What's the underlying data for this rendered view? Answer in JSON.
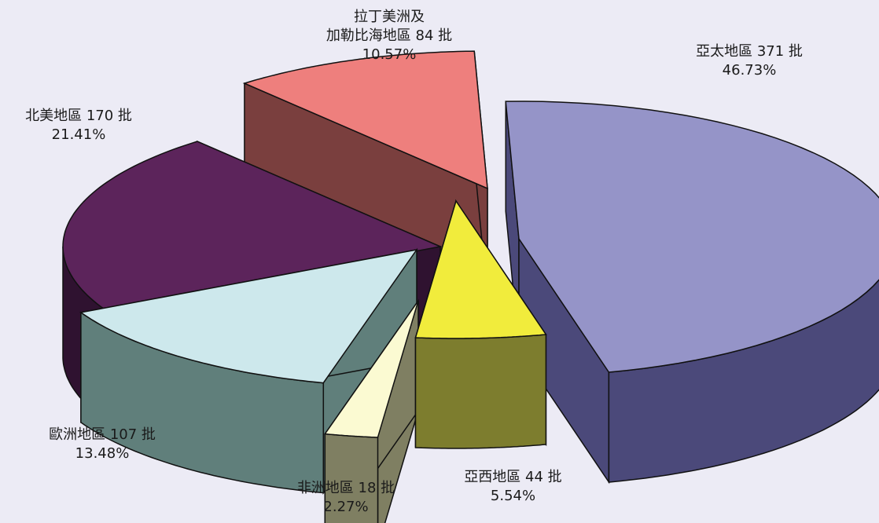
{
  "chart_data": {
    "type": "pie",
    "style": "3d-exploded",
    "slices": [
      {
        "label": "亞太地區 371 批",
        "name": "亞太地區",
        "value": 371,
        "unit": "批",
        "percent": "46.73%",
        "top_color": "#9594c8",
        "side_color": "#4b497a"
      },
      {
        "label": "亞西地區 44 批",
        "name": "亞西地區",
        "value": 44,
        "unit": "批",
        "percent": "5.54%",
        "top_color": "#f1ec3c",
        "side_color": "#7d7d2e"
      },
      {
        "label": "非洲地區 18 批",
        "name": "非洲地區",
        "value": 18,
        "unit": "批",
        "percent": "2.27%",
        "top_color": "#fbfad2",
        "side_color": "#7f7f62"
      },
      {
        "label": "歐洲地區 107 批",
        "name": "歐洲地區",
        "value": 107,
        "unit": "批",
        "percent": "13.48%",
        "top_color": "#cde8ec",
        "side_color": "#607f7b"
      },
      {
        "label": "北美地區 170 批",
        "name": "北美地區",
        "value": 170,
        "unit": "批",
        "percent": "21.41%",
        "top_color": "#5c245b",
        "side_color": "#2f1230"
      },
      {
        "label_line1": "拉丁美洲及",
        "label": "加勒比海地區 84 批",
        "name": "拉丁美洲及加勒比海地區",
        "value": 84,
        "unit": "批",
        "percent": "10.57%",
        "top_color": "#ee7f7d",
        "side_color": "#7a3f3e"
      }
    ],
    "legend": "none"
  }
}
